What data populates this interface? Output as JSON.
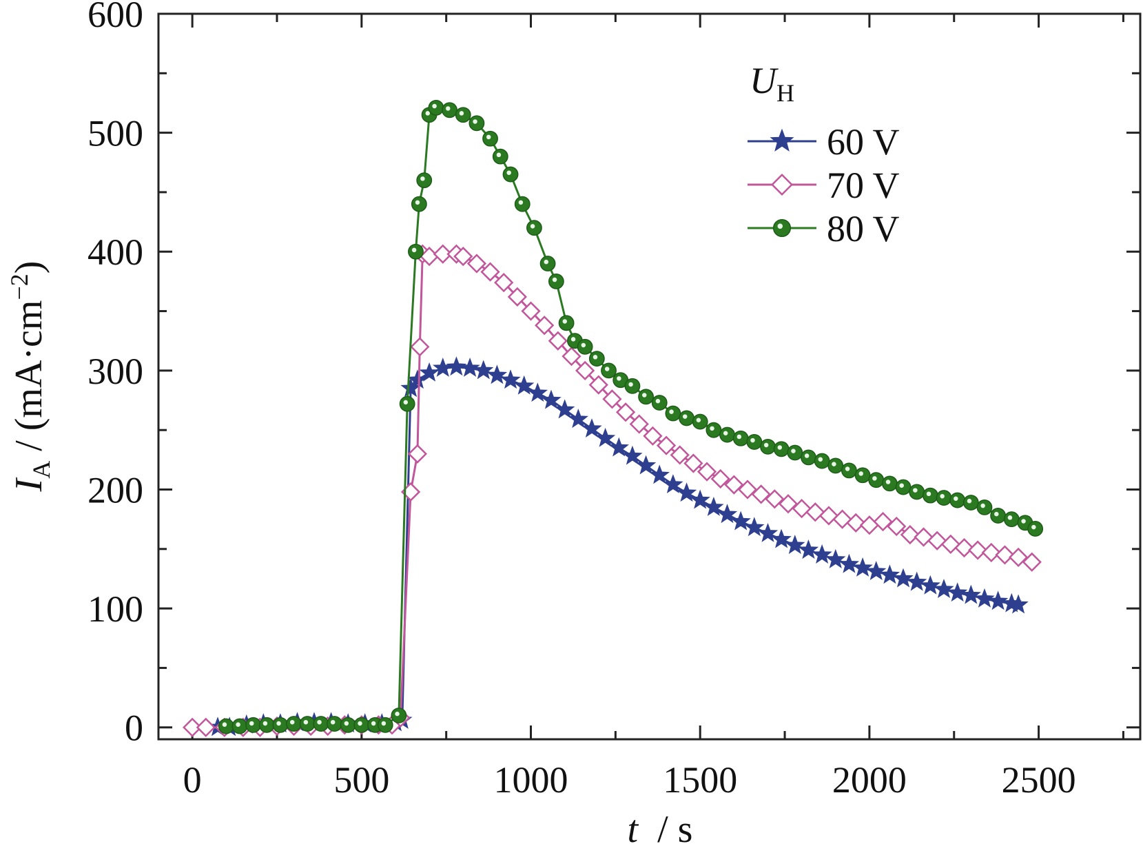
{
  "chart_data": {
    "type": "line",
    "title": "",
    "xlabel": {
      "symbol": "t",
      "unit": "s"
    },
    "ylabel": {
      "symbol": "I",
      "subscript": "A",
      "unit": "(mA·cm",
      "unit_exp": "−2",
      "unit_close": ")"
    },
    "xlim": [
      -100,
      2800
    ],
    "ylim": [
      -10,
      600
    ],
    "x_ticks": [
      0,
      500,
      1000,
      1500,
      2000,
      2500
    ],
    "x_tick_labels": [
      "0",
      "500",
      "1000",
      "1500",
      "2000",
      "2500"
    ],
    "y_ticks": [
      0,
      100,
      200,
      300,
      400,
      500,
      600
    ],
    "y_tick_labels": [
      "0",
      "100",
      "200",
      "300",
      "400",
      "500",
      "600"
    ],
    "grid": false,
    "legend": {
      "title_symbol": "U",
      "title_subscript": "H",
      "placement": "top-right"
    },
    "series": [
      {
        "name": "60 V",
        "color": "#2e3f8f",
        "marker": "star",
        "points": [
          [
            75,
            0
          ],
          [
            110,
            0
          ],
          [
            160,
            2
          ],
          [
            210,
            3
          ],
          [
            260,
            3
          ],
          [
            310,
            4
          ],
          [
            360,
            4
          ],
          [
            410,
            4
          ],
          [
            460,
            3
          ],
          [
            510,
            3
          ],
          [
            560,
            3
          ],
          [
            600,
            4
          ],
          [
            620,
            6
          ],
          [
            645,
            285
          ],
          [
            665,
            292
          ],
          [
            700,
            298
          ],
          [
            740,
            302
          ],
          [
            780,
            303
          ],
          [
            820,
            302
          ],
          [
            860,
            300
          ],
          [
            900,
            296
          ],
          [
            940,
            292
          ],
          [
            980,
            287
          ],
          [
            1020,
            281
          ],
          [
            1060,
            275
          ],
          [
            1100,
            267
          ],
          [
            1140,
            259
          ],
          [
            1180,
            251
          ],
          [
            1220,
            243
          ],
          [
            1260,
            235
          ],
          [
            1300,
            228
          ],
          [
            1340,
            220
          ],
          [
            1380,
            212
          ],
          [
            1420,
            204
          ],
          [
            1460,
            197
          ],
          [
            1500,
            191
          ],
          [
            1540,
            185
          ],
          [
            1580,
            179
          ],
          [
            1620,
            173
          ],
          [
            1660,
            168
          ],
          [
            1700,
            163
          ],
          [
            1740,
            158
          ],
          [
            1780,
            153
          ],
          [
            1820,
            149
          ],
          [
            1860,
            145
          ],
          [
            1900,
            141
          ],
          [
            1940,
            137
          ],
          [
            1980,
            134
          ],
          [
            2020,
            131
          ],
          [
            2060,
            128
          ],
          [
            2100,
            125
          ],
          [
            2140,
            122
          ],
          [
            2180,
            119
          ],
          [
            2220,
            116
          ],
          [
            2260,
            113
          ],
          [
            2300,
            111
          ],
          [
            2340,
            108
          ],
          [
            2380,
            106
          ],
          [
            2420,
            104
          ],
          [
            2440,
            103
          ]
        ]
      },
      {
        "name": "70 V",
        "color": "#c1569b",
        "marker": "diamond",
        "points": [
          [
            0,
            0
          ],
          [
            40,
            0
          ],
          [
            95,
            0
          ],
          [
            150,
            0
          ],
          [
            200,
            0
          ],
          [
            250,
            1
          ],
          [
            300,
            1
          ],
          [
            350,
            1
          ],
          [
            400,
            1
          ],
          [
            450,
            2
          ],
          [
            500,
            2
          ],
          [
            550,
            2
          ],
          [
            590,
            2
          ],
          [
            615,
            8
          ],
          [
            645,
            198
          ],
          [
            665,
            230
          ],
          [
            672,
            320
          ],
          [
            680,
            398
          ],
          [
            700,
            396
          ],
          [
            740,
            398
          ],
          [
            780,
            398
          ],
          [
            800,
            396
          ],
          [
            840,
            390
          ],
          [
            880,
            383
          ],
          [
            920,
            374
          ],
          [
            960,
            362
          ],
          [
            1000,
            350
          ],
          [
            1040,
            338
          ],
          [
            1080,
            325
          ],
          [
            1120,
            312
          ],
          [
            1160,
            300
          ],
          [
            1200,
            288
          ],
          [
            1240,
            276
          ],
          [
            1280,
            265
          ],
          [
            1320,
            255
          ],
          [
            1360,
            245
          ],
          [
            1400,
            237
          ],
          [
            1440,
            229
          ],
          [
            1480,
            222
          ],
          [
            1520,
            215
          ],
          [
            1560,
            209
          ],
          [
            1600,
            204
          ],
          [
            1640,
            200
          ],
          [
            1680,
            196
          ],
          [
            1720,
            192
          ],
          [
            1760,
            188
          ],
          [
            1800,
            184
          ],
          [
            1840,
            181
          ],
          [
            1880,
            178
          ],
          [
            1920,
            175
          ],
          [
            1960,
            172
          ],
          [
            2000,
            170
          ],
          [
            2040,
            173
          ],
          [
            2080,
            169
          ],
          [
            2120,
            162
          ],
          [
            2160,
            160
          ],
          [
            2200,
            157
          ],
          [
            2240,
            154
          ],
          [
            2280,
            151
          ],
          [
            2320,
            149
          ],
          [
            2360,
            147
          ],
          [
            2400,
            145
          ],
          [
            2440,
            143
          ],
          [
            2480,
            139
          ]
        ]
      },
      {
        "name": "80 V",
        "color": "#2b7a22",
        "marker": "circle",
        "points": [
          [
            100,
            1
          ],
          [
            140,
            1
          ],
          [
            180,
            2
          ],
          [
            220,
            2
          ],
          [
            260,
            2
          ],
          [
            300,
            3
          ],
          [
            340,
            3
          ],
          [
            380,
            3
          ],
          [
            420,
            3
          ],
          [
            460,
            2
          ],
          [
            500,
            2
          ],
          [
            540,
            2
          ],
          [
            570,
            2
          ],
          [
            610,
            10
          ],
          [
            635,
            272
          ],
          [
            660,
            400
          ],
          [
            670,
            440
          ],
          [
            685,
            460
          ],
          [
            700,
            515
          ],
          [
            720,
            521
          ],
          [
            760,
            519
          ],
          [
            800,
            515
          ],
          [
            840,
            508
          ],
          [
            880,
            495
          ],
          [
            910,
            480
          ],
          [
            940,
            465
          ],
          [
            975,
            440
          ],
          [
            1010,
            420
          ],
          [
            1050,
            390
          ],
          [
            1075,
            375
          ],
          [
            1105,
            340
          ],
          [
            1130,
            325
          ],
          [
            1160,
            320
          ],
          [
            1195,
            310
          ],
          [
            1230,
            300
          ],
          [
            1265,
            292
          ],
          [
            1300,
            287
          ],
          [
            1340,
            278
          ],
          [
            1380,
            273
          ],
          [
            1420,
            264
          ],
          [
            1460,
            260
          ],
          [
            1500,
            257
          ],
          [
            1540,
            250
          ],
          [
            1580,
            246
          ],
          [
            1620,
            243
          ],
          [
            1660,
            240
          ],
          [
            1700,
            236
          ],
          [
            1740,
            234
          ],
          [
            1780,
            231
          ],
          [
            1820,
            227
          ],
          [
            1860,
            224
          ],
          [
            1900,
            220
          ],
          [
            1940,
            216
          ],
          [
            1980,
            212
          ],
          [
            2020,
            208
          ],
          [
            2060,
            205
          ],
          [
            2100,
            202
          ],
          [
            2140,
            198
          ],
          [
            2180,
            195
          ],
          [
            2220,
            193
          ],
          [
            2260,
            191
          ],
          [
            2300,
            189
          ],
          [
            2340,
            185
          ],
          [
            2380,
            178
          ],
          [
            2420,
            175
          ],
          [
            2460,
            172
          ],
          [
            2490,
            167
          ]
        ]
      }
    ]
  }
}
